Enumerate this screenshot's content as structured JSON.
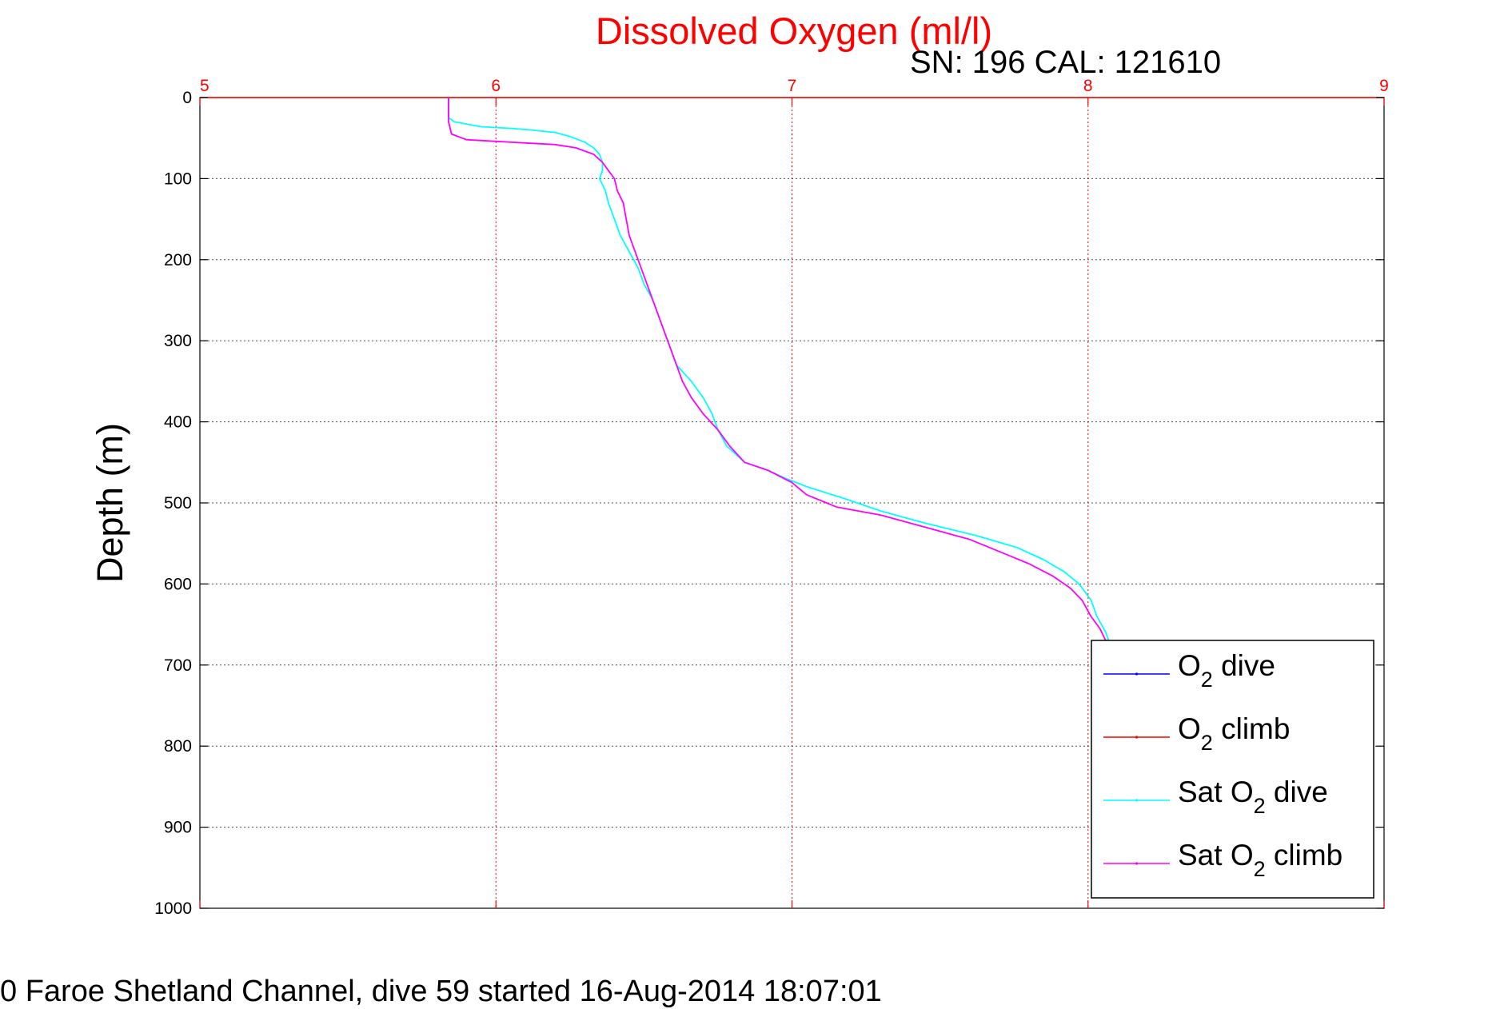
{
  "chart_data": {
    "type": "line",
    "title": "Dissolved Oxygen (ml/l)",
    "subtitle": "SN: 196  CAL: 121610",
    "ylabel": "Depth (m)",
    "footer": "0 Faroe Shetland Channel, dive 59 started 16-Aug-2014 18:07:01",
    "xlim": [
      5,
      9
    ],
    "ylim": [
      0,
      1000
    ],
    "y_reversed": true,
    "x_axis_position": "top",
    "x_ticks": [
      "5",
      "6",
      "7",
      "8",
      "9"
    ],
    "y_ticks": [
      "0",
      "100",
      "200",
      "300",
      "400",
      "500",
      "600",
      "700",
      "800",
      "900",
      "1000"
    ],
    "grid": true,
    "legend_position": "bottom-right",
    "colors": {
      "x_axis": "#ff0000",
      "title": "#ff0000",
      "o2_dive": "#0000ff",
      "o2_climb": "#ff0000",
      "sat_o2_dive": "#00ffff",
      "sat_o2_climb": "#ff00ff"
    },
    "legend": [
      {
        "label_parts": [
          "O",
          "2",
          " dive"
        ],
        "color": "#0000ff"
      },
      {
        "label_parts": [
          "O",
          "2",
          " climb"
        ],
        "color": "#ff0000"
      },
      {
        "label_parts": [
          "Sat O",
          "2",
          " dive"
        ],
        "color": "#00ffff"
      },
      {
        "label_parts": [
          "Sat O",
          "2",
          " climb"
        ],
        "color": "#ff00ff"
      }
    ],
    "series": [
      {
        "key": "sat_o2_dive",
        "color": "#00ffff",
        "points": [
          [
            5.84,
            0
          ],
          [
            5.84,
            10
          ],
          [
            5.84,
            25
          ],
          [
            5.86,
            30
          ],
          [
            5.95,
            36
          ],
          [
            6.05,
            38
          ],
          [
            6.12,
            40
          ],
          [
            6.2,
            43
          ],
          [
            6.25,
            48
          ],
          [
            6.3,
            55
          ],
          [
            6.33,
            62
          ],
          [
            6.35,
            70
          ],
          [
            6.36,
            80
          ],
          [
            6.36,
            90
          ],
          [
            6.35,
            100
          ],
          [
            6.37,
            115
          ],
          [
            6.38,
            130
          ],
          [
            6.4,
            150
          ],
          [
            6.42,
            170
          ],
          [
            6.45,
            190
          ],
          [
            6.48,
            210
          ],
          [
            6.5,
            230
          ],
          [
            6.53,
            250
          ],
          [
            6.55,
            270
          ],
          [
            6.57,
            290
          ],
          [
            6.59,
            310
          ],
          [
            6.61,
            330
          ],
          [
            6.66,
            350
          ],
          [
            6.7,
            370
          ],
          [
            6.73,
            390
          ],
          [
            6.75,
            410
          ],
          [
            6.78,
            430
          ],
          [
            6.84,
            450
          ],
          [
            6.92,
            460
          ],
          [
            6.98,
            470
          ],
          [
            7.05,
            480
          ],
          [
            7.18,
            495
          ],
          [
            7.3,
            510
          ],
          [
            7.45,
            525
          ],
          [
            7.62,
            540
          ],
          [
            7.76,
            555
          ],
          [
            7.85,
            570
          ],
          [
            7.92,
            585
          ],
          [
            7.97,
            600
          ],
          [
            8.01,
            620
          ],
          [
            8.03,
            640
          ],
          [
            8.06,
            660
          ],
          [
            8.07,
            670
          ]
        ]
      },
      {
        "key": "sat_o2_climb",
        "color": "#ff00ff",
        "points": [
          [
            5.84,
            0
          ],
          [
            5.84,
            10
          ],
          [
            5.84,
            30
          ],
          [
            5.85,
            45
          ],
          [
            5.9,
            52
          ],
          [
            6.0,
            54
          ],
          [
            6.1,
            56
          ],
          [
            6.2,
            58
          ],
          [
            6.27,
            62
          ],
          [
            6.33,
            70
          ],
          [
            6.36,
            80
          ],
          [
            6.38,
            90
          ],
          [
            6.4,
            100
          ],
          [
            6.41,
            115
          ],
          [
            6.43,
            130
          ],
          [
            6.44,
            150
          ],
          [
            6.45,
            170
          ],
          [
            6.47,
            190
          ],
          [
            6.49,
            210
          ],
          [
            6.51,
            230
          ],
          [
            6.53,
            250
          ],
          [
            6.55,
            270
          ],
          [
            6.57,
            290
          ],
          [
            6.59,
            310
          ],
          [
            6.61,
            330
          ],
          [
            6.63,
            350
          ],
          [
            6.66,
            370
          ],
          [
            6.7,
            390
          ],
          [
            6.75,
            410
          ],
          [
            6.79,
            430
          ],
          [
            6.84,
            450
          ],
          [
            6.92,
            460
          ],
          [
            7.0,
            475
          ],
          [
            7.05,
            490
          ],
          [
            7.15,
            505
          ],
          [
            7.3,
            515
          ],
          [
            7.45,
            530
          ],
          [
            7.6,
            545
          ],
          [
            7.7,
            560
          ],
          [
            7.8,
            575
          ],
          [
            7.88,
            590
          ],
          [
            7.94,
            605
          ],
          [
            7.98,
            620
          ],
          [
            8.01,
            640
          ],
          [
            8.04,
            655
          ],
          [
            8.06,
            670
          ]
        ]
      }
    ]
  }
}
